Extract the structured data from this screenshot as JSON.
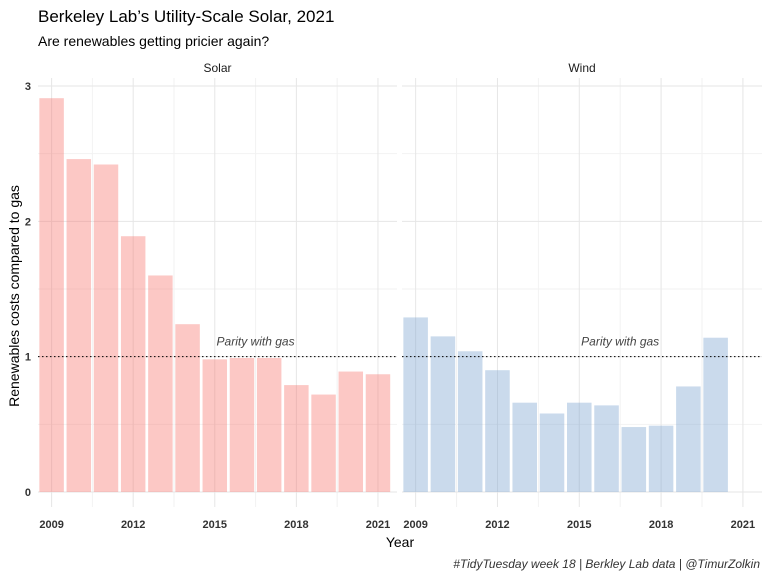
{
  "chart_data": {
    "type": "bar",
    "title": "Berkeley Lab’s Utility-Scale Solar, 2021",
    "subtitle": "Are renewables getting pricier again?",
    "xlabel": "Year",
    "ylabel": "Renewables costs compared to gas",
    "caption": "#TidyTuesday week 18 | Berkley Lab data | @TimurZolkin",
    "ylim": [
      0,
      3
    ],
    "yticks": [
      0,
      1,
      2,
      3
    ],
    "xlim": [
      2008.5,
      2021.7
    ],
    "xticks": [
      2009,
      2012,
      2015,
      2018,
      2021
    ],
    "grid": true,
    "reference_line": {
      "y": 1,
      "label": "Parity with gas",
      "style": "dotted",
      "label_x": 2016.5
    },
    "panels": [
      {
        "name": "Solar",
        "color": "#F8766D",
        "x": [
          2009,
          2010,
          2011,
          2012,
          2013,
          2014,
          2015,
          2016,
          2017,
          2018,
          2019,
          2020,
          2021
        ],
        "values": [
          2.91,
          2.46,
          2.42,
          1.89,
          1.6,
          1.24,
          0.98,
          0.99,
          0.99,
          0.79,
          0.72,
          0.89,
          0.87
        ]
      },
      {
        "name": "Wind",
        "color": "#7BA3CF",
        "x": [
          2009,
          2010,
          2011,
          2012,
          2013,
          2014,
          2015,
          2016,
          2017,
          2018,
          2019,
          2020
        ],
        "values": [
          1.29,
          1.15,
          1.04,
          0.9,
          0.66,
          0.58,
          0.66,
          0.64,
          0.48,
          0.49,
          0.78,
          1.14
        ]
      }
    ]
  }
}
